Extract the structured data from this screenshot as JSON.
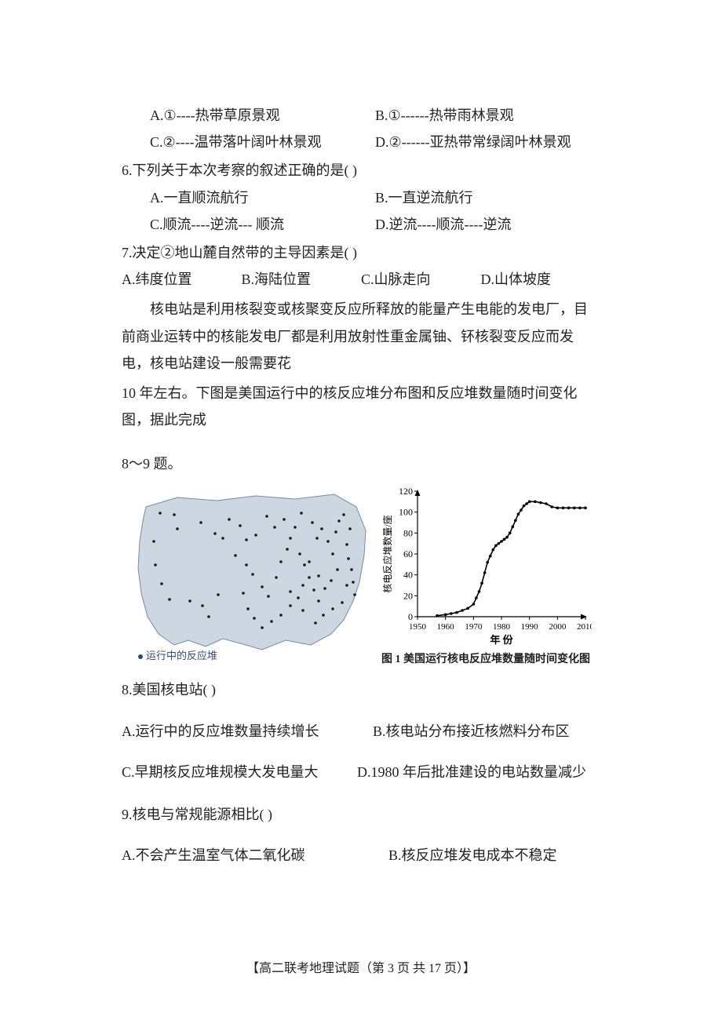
{
  "q5": {
    "optA": "A.①----热带草原景观",
    "optB": "B.①------热带雨林景观",
    "optC": "C.②----温带落叶阔叶林景观",
    "optD": "D.②------亚热带常绿阔叶林景观"
  },
  "q6": {
    "stem": "6.下列关于本次考察的叙述正确的是(        )",
    "optA": "A.一直顺流航行",
    "optB": "B.一直逆流航行",
    "optC": "C.顺流----逆流--- 顺流",
    "optD": "D.逆流----顺流----逆流"
  },
  "q7": {
    "stem": "7.决定②地山麓自然带的主导因素是(       )",
    "optA": "A.纬度位置",
    "optB": "B.海陆位置",
    "optC": "C.山脉走向",
    "optD": "D.山体坡度"
  },
  "passage": {
    "p1": "核电站是利用核裂变或核聚变反应所释放的能量产生电能的发电厂，目前商业运转中的核能发电厂都是利用放射性重金属铀、钚核裂变反应而发电，核电站建设一般需要花",
    "p2": "10 年左右。下图是美国运行中的核反应堆分布图和反应堆数量随时间变化图，据此完成",
    "p3": "8～9 题。"
  },
  "figure": {
    "map": {
      "fill": "#cdd7e1",
      "stroke": "#7a8aa0",
      "dot_color": "#1a1a1a",
      "legend": "运行中的反应堆",
      "points": [
        [
          38,
          38
        ],
        [
          56,
          40
        ],
        [
          60,
          58
        ],
        [
          30,
          74
        ],
        [
          32,
          104
        ],
        [
          40,
          128
        ],
        [
          50,
          148
        ],
        [
          76,
          150
        ],
        [
          92,
          156
        ],
        [
          100,
          170
        ],
        [
          112,
          142
        ],
        [
          90,
          50
        ],
        [
          108,
          64
        ],
        [
          118,
          70
        ],
        [
          126,
          46
        ],
        [
          140,
          54
        ],
        [
          148,
          72
        ],
        [
          160,
          66
        ],
        [
          134,
          92
        ],
        [
          148,
          104
        ],
        [
          156,
          116
        ],
        [
          144,
          140
        ],
        [
          168,
          132
        ],
        [
          176,
          144
        ],
        [
          186,
          120
        ],
        [
          192,
          100
        ],
        [
          200,
          84
        ],
        [
          204,
          70
        ],
        [
          210,
          56
        ],
        [
          216,
          90
        ],
        [
          222,
          104
        ],
        [
          228,
          120
        ],
        [
          234,
          136
        ],
        [
          240,
          150
        ],
        [
          238,
          70
        ],
        [
          244,
          58
        ],
        [
          252,
          74
        ],
        [
          258,
          90
        ],
        [
          262,
          62
        ],
        [
          266,
          48
        ],
        [
          272,
          40
        ],
        [
          276,
          78
        ],
        [
          278,
          96
        ],
        [
          282,
          110
        ],
        [
          284,
          126
        ],
        [
          286,
          142
        ],
        [
          270,
          152
        ],
        [
          258,
          160
        ],
        [
          246,
          168
        ],
        [
          236,
          178
        ],
        [
          220,
          162
        ],
        [
          204,
          156
        ],
        [
          192,
          168
        ],
        [
          180,
          176
        ],
        [
          168,
          184
        ],
        [
          158,
          172
        ],
        [
          150,
          160
        ],
        [
          204,
          138
        ],
        [
          214,
          146
        ],
        [
          220,
          130
        ],
        [
          228,
          100
        ],
        [
          240,
          118
        ],
        [
          248,
          134
        ],
        [
          256,
          124
        ],
        [
          264,
          110
        ],
        [
          276,
          130
        ],
        [
          280,
          58
        ],
        [
          232,
          50
        ],
        [
          218,
          38
        ],
        [
          196,
          46
        ],
        [
          184,
          56
        ],
        [
          174,
          42
        ]
      ]
    },
    "chart": {
      "type": "line",
      "title": "图 1 美国运行核电反应堆数量随时间变化图",
      "xlabel": "年 份",
      "ylabel": "核电反应堆数量/座",
      "ylim": [
        0,
        120
      ],
      "ytick_step": 20,
      "xlim": [
        1950,
        2010
      ],
      "xtick_step": 10,
      "xticks": [
        1950,
        1960,
        1970,
        1980,
        1990,
        2000,
        2010
      ],
      "yticks": [
        0,
        20,
        40,
        60,
        80,
        100,
        120
      ],
      "axis_color": "#000000",
      "line_color": "#000000",
      "line_width": 1.6,
      "marker_color": "#000000",
      "background_color": "#ffffff",
      "data": [
        [
          1957,
          1
        ],
        [
          1960,
          2
        ],
        [
          1962,
          3
        ],
        [
          1964,
          4
        ],
        [
          1966,
          6
        ],
        [
          1968,
          8
        ],
        [
          1970,
          12
        ],
        [
          1971,
          18
        ],
        [
          1972,
          24
        ],
        [
          1973,
          32
        ],
        [
          1974,
          42
        ],
        [
          1975,
          52
        ],
        [
          1976,
          58
        ],
        [
          1977,
          64
        ],
        [
          1978,
          68
        ],
        [
          1979,
          70
        ],
        [
          1980,
          72
        ],
        [
          1981,
          74
        ],
        [
          1982,
          76
        ],
        [
          1983,
          80
        ],
        [
          1984,
          86
        ],
        [
          1985,
          92
        ],
        [
          1986,
          98
        ],
        [
          1987,
          102
        ],
        [
          1988,
          106
        ],
        [
          1989,
          108
        ],
        [
          1990,
          110
        ],
        [
          1992,
          110
        ],
        [
          1994,
          109
        ],
        [
          1996,
          108
        ],
        [
          1998,
          105
        ],
        [
          2000,
          104
        ],
        [
          2002,
          104
        ],
        [
          2004,
          104
        ],
        [
          2006,
          104
        ],
        [
          2008,
          104
        ],
        [
          2010,
          104
        ]
      ]
    }
  },
  "q8": {
    "stem": "8.美国核电站(          )",
    "optA": "A.运行中的反应堆数量持续增长",
    "optB": "B.核电站分布接近核燃料分布区",
    "optC": "C.早期核反应堆规模大发电量大",
    "optD": "D.1980 年后批准建设的电站数量减少"
  },
  "q9": {
    "stem": "9.核电与常规能源相比(         )",
    "optA": "A.不会产生温室气体二氧化碳",
    "optB": "B.核反应堆发电成本不稳定"
  },
  "footer": "【高二联考地理试题（第 3 页 共 17 页）】"
}
